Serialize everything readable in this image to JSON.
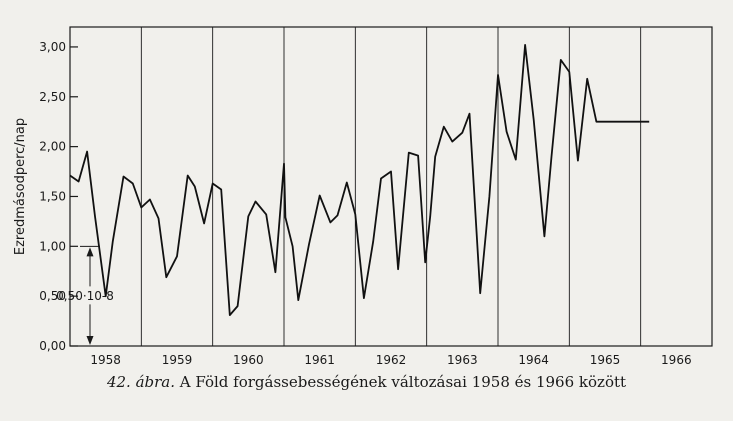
{
  "chart_data": {
    "type": "line",
    "title": "",
    "ylabel": "Ezredmásodperc/nap",
    "xlabel": "",
    "ylim": [
      0,
      3.2
    ],
    "xlim": [
      1957.5,
      1966.5
    ],
    "grid": "vertical lines at year boundaries",
    "yticks": [
      "0,00",
      "0,50",
      "1,00",
      "1,50",
      "2,00",
      "2,50",
      "3,00"
    ],
    "ytick_values": [
      0,
      0.5,
      1,
      1.5,
      2,
      2.5,
      3
    ],
    "xtick_labels": [
      "1958",
      "1959",
      "1960",
      "1961",
      "1962",
      "1963",
      "1964",
      "1965",
      "1966"
    ],
    "annotation": "0,50·10-8",
    "series": [
      {
        "x": [
          1957.5,
          1957.62,
          1957.74,
          1957.85,
          1958.0,
          1958.1,
          1958.25,
          1958.38,
          1958.5,
          1958.62,
          1958.74,
          1958.85,
          1959.0,
          1959.15,
          1959.25,
          1959.38,
          1959.5,
          1959.62,
          1959.74,
          1959.85,
          1960.0,
          1960.1,
          1960.25,
          1960.38,
          1960.5,
          1960.52,
          1960.62,
          1960.7,
          1960.85,
          1961.0,
          1961.15,
          1961.25,
          1961.38,
          1961.5,
          1961.62,
          1961.75,
          1961.86,
          1962.0,
          1962.1,
          1962.25,
          1962.38,
          1962.48,
          1962.55,
          1962.62,
          1962.74,
          1962.86,
          1963.0,
          1963.1,
          1963.25,
          1963.38,
          1963.5,
          1963.62,
          1963.75,
          1963.88,
          1964.0,
          1964.15,
          1964.25,
          1964.38,
          1964.5,
          1964.62,
          1964.75,
          1964.88,
          1965.0,
          1965.12,
          1965.25,
          1965.36,
          1965.42,
          1965.5,
          1965.62
        ],
        "values": [
          1.71,
          1.65,
          1.95,
          1.3,
          0.5,
          1.05,
          1.7,
          1.63,
          1.39,
          1.47,
          1.28,
          0.69,
          0.9,
          1.71,
          1.6,
          1.23,
          1.63,
          1.57,
          0.31,
          0.4,
          1.3,
          1.45,
          1.32,
          0.74,
          1.83,
          1.29,
          1.0,
          0.46,
          1.02,
          1.51,
          1.24,
          1.31,
          1.64,
          1.32,
          0.48,
          1.05,
          1.68,
          1.75,
          0.77,
          1.94,
          1.91,
          0.84,
          1.3,
          1.9,
          2.2,
          2.05,
          2.14,
          2.33,
          0.53,
          1.5,
          2.72,
          2.15,
          1.87,
          3.02,
          2.27,
          1.1,
          1.9,
          2.87,
          2.75,
          1.86,
          2.68,
          2.25,
          2.25,
          2.25,
          2.25,
          2.25,
          2.25,
          2.25,
          2.25
        ]
      }
    ]
  },
  "caption": {
    "figure_label": "42. ábra.",
    "text": " A Föld forgássebességének változásai 1958 és 1966 között"
  }
}
